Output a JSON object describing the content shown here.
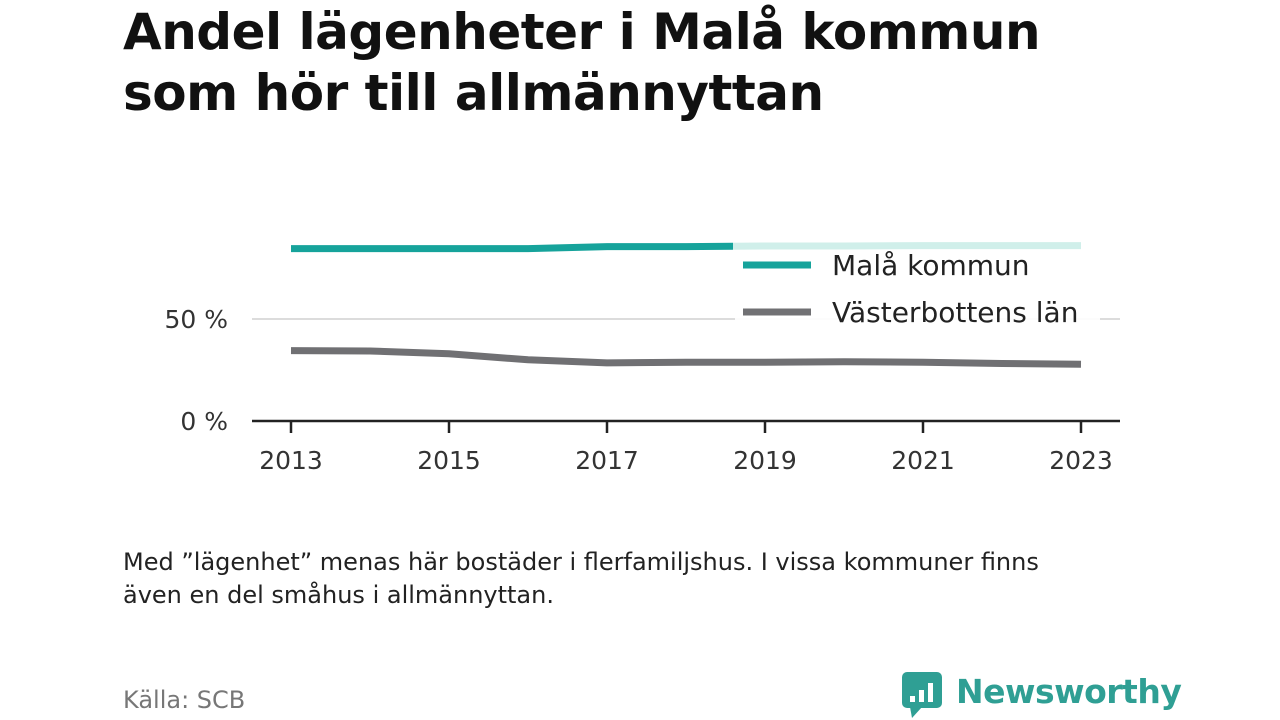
{
  "title_lines": [
    "Andel lägenheter i Malå kommun",
    "som hör till allmännyttan"
  ],
  "note_lines": [
    "Med ”lägenhet” menas här bostäder i flerfamiljshus. I vissa kommuner finns",
    "även en del småhus i allmännyttan."
  ],
  "source": "Källa: SCB",
  "brand": {
    "name": "Newsworthy",
    "icon": "bar-chart-speech-bubble-icon"
  },
  "colors": {
    "series_mala": "#16a39b",
    "series_mala_faded": "#d0efea",
    "series_lan": "#707073",
    "grid": "#dcdcdc",
    "axis": "#222222",
    "brand": "#2f9f94"
  },
  "chart_data": {
    "type": "line",
    "x": [
      2013,
      2014,
      2015,
      2016,
      2017,
      2018,
      2019,
      2020,
      2021,
      2022,
      2023
    ],
    "x_tick_labels": [
      "2013",
      "2015",
      "2017",
      "2019",
      "2021",
      "2023"
    ],
    "y_ticks": [
      0,
      50
    ],
    "y_tick_labels": [
      "0 %",
      "50 %"
    ],
    "ylim": [
      0,
      100
    ],
    "grid": "horizontal",
    "legend_position": "top-right",
    "series": [
      {
        "name": "Malå kommun",
        "values": [
          84.5,
          84.5,
          84.5,
          84.5,
          85.5,
          85.5,
          85.8,
          85.8,
          86.0,
          86.0,
          86.0
        ]
      },
      {
        "name": "Västerbottens län",
        "values": [
          34.5,
          34.3,
          33.0,
          30.0,
          28.5,
          28.8,
          28.8,
          29.0,
          28.8,
          28.2,
          27.8
        ]
      }
    ]
  }
}
